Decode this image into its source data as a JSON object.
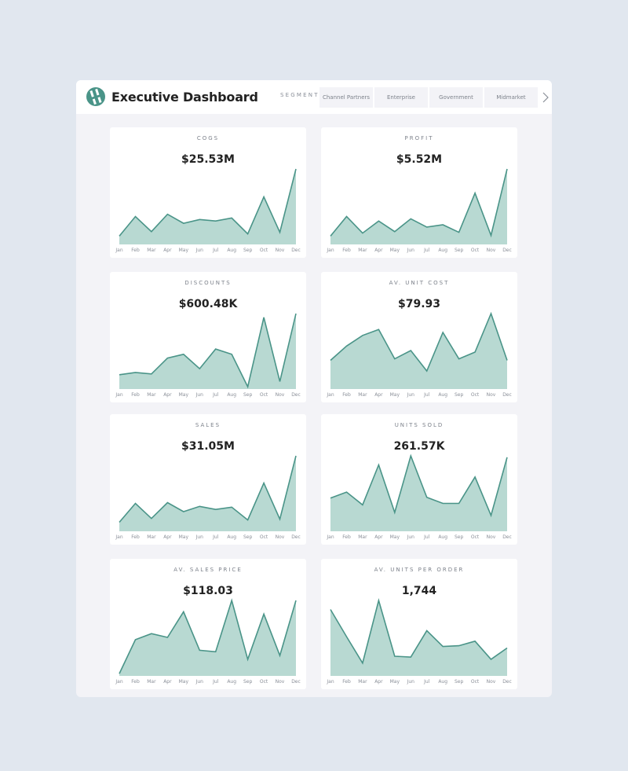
{
  "header": {
    "title": "Executive Dashboard",
    "segment_label": "SEGMENT",
    "segments": [
      "Channel Partners",
      "Enterprise",
      "Government",
      "Midmarket"
    ],
    "next_icon": "chevron-right-icon",
    "logo_icon": "logo-icon"
  },
  "colors": {
    "accent_line": "#4a9488",
    "accent_fill": "#b8d9d2",
    "page_bg": "#e1e7ef",
    "panel_bg": "#f3f3f7"
  },
  "months": [
    "Jan",
    "Feb",
    "Mar",
    "Apr",
    "May",
    "Jun",
    "Jul",
    "Aug",
    "Sep",
    "Oct",
    "Nov",
    "Dec"
  ],
  "cards": [
    {
      "label": "COGS",
      "value": "$25.53M"
    },
    {
      "label": "PROFIT",
      "value": "$5.52M"
    },
    {
      "label": "DISCOUNTS",
      "value": "$600.48K"
    },
    {
      "label": "AV. UNIT COST",
      "value": "$79.93"
    },
    {
      "label": "SALES",
      "value": "$31.05M"
    },
    {
      "label": "UNITS SOLD",
      "value": "261.57K"
    },
    {
      "label": "AV. SALES PRICE",
      "value": "$118.03"
    },
    {
      "label": "AV. UNITS PER ORDER",
      "value": "1,744"
    }
  ],
  "chart_data": [
    {
      "type": "area",
      "title": "COGS",
      "categories": [
        "Jan",
        "Feb",
        "Mar",
        "Apr",
        "May",
        "Jun",
        "Jul",
        "Aug",
        "Sep",
        "Oct",
        "Nov",
        "Dec"
      ],
      "values": [
        11,
        37,
        17,
        40,
        28,
        33,
        31,
        35,
        14,
        63,
        16,
        100
      ],
      "value_scale": "relative 0-100",
      "kpi": "$25.53M"
    },
    {
      "type": "area",
      "title": "PROFIT",
      "categories": [
        "Jan",
        "Feb",
        "Mar",
        "Apr",
        "May",
        "Jun",
        "Jul",
        "Aug",
        "Sep",
        "Oct",
        "Nov",
        "Dec"
      ],
      "values": [
        11,
        37,
        15,
        31,
        17,
        34,
        23,
        26,
        16,
        68,
        12,
        100
      ],
      "value_scale": "relative 0-100",
      "kpi": "$5.52M"
    },
    {
      "type": "area",
      "title": "DISCOUNTS",
      "categories": [
        "Jan",
        "Feb",
        "Mar",
        "Apr",
        "May",
        "Jun",
        "Jul",
        "Aug",
        "Sep",
        "Oct",
        "Nov",
        "Dec"
      ],
      "values": [
        19,
        22,
        20,
        41,
        46,
        27,
        53,
        46,
        3,
        95,
        10,
        100
      ],
      "value_scale": "relative 0-100",
      "kpi": "$600.48K"
    },
    {
      "type": "area",
      "title": "AV. UNIT COST",
      "categories": [
        "Jan",
        "Feb",
        "Mar",
        "Apr",
        "May",
        "Jun",
        "Jul",
        "Aug",
        "Sep",
        "Oct",
        "Nov",
        "Dec"
      ],
      "values": [
        38,
        57,
        71,
        79,
        40,
        51,
        24,
        75,
        40,
        49,
        100,
        38
      ],
      "value_scale": "relative 0-100",
      "kpi": "$79.93"
    },
    {
      "type": "area",
      "title": "SALES",
      "categories": [
        "Jan",
        "Feb",
        "Mar",
        "Apr",
        "May",
        "Jun",
        "Jul",
        "Aug",
        "Sep",
        "Oct",
        "Nov",
        "Dec"
      ],
      "values": [
        12,
        37,
        17,
        38,
        26,
        33,
        29,
        32,
        15,
        64,
        16,
        100
      ],
      "value_scale": "relative 0-100",
      "kpi": "$31.05M"
    },
    {
      "type": "area",
      "title": "UNITS SOLD",
      "categories": [
        "Jan",
        "Feb",
        "Mar",
        "Apr",
        "May",
        "Jun",
        "Jul",
        "Aug",
        "Sep",
        "Oct",
        "Nov",
        "Dec"
      ],
      "values": [
        44,
        52,
        35,
        88,
        25,
        100,
        45,
        37,
        37,
        72,
        21,
        98
      ],
      "value_scale": "relative 0-100",
      "kpi": "261.57K"
    },
    {
      "type": "area",
      "title": "AV. SALES PRICE",
      "categories": [
        "Jan",
        "Feb",
        "Mar",
        "Apr",
        "May",
        "Jun",
        "Jul",
        "Aug",
        "Sep",
        "Oct",
        "Nov",
        "Dec"
      ],
      "values": [
        3,
        48,
        56,
        51,
        85,
        34,
        32,
        100,
        22,
        82,
        27,
        100
      ],
      "value_scale": "relative 0-100",
      "kpi": "$118.03"
    },
    {
      "type": "area",
      "title": "AV. UNITS PER ORDER",
      "categories": [
        "Jan",
        "Feb",
        "Mar",
        "Apr",
        "May",
        "Jun",
        "Jul",
        "Aug",
        "Sep",
        "Oct",
        "Nov",
        "Dec"
      ],
      "values": [
        88,
        52,
        17,
        100,
        26,
        25,
        60,
        39,
        40,
        46,
        22,
        37
      ],
      "value_scale": "relative 0-100",
      "kpi": "1,744"
    }
  ]
}
